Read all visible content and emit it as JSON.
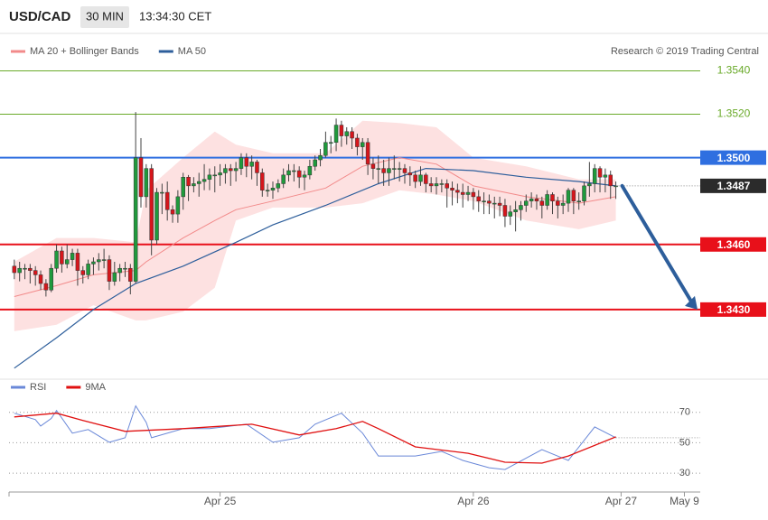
{
  "header": {
    "symbol": "USD/CAD",
    "interval": "30 MIN",
    "time": "13:34:30 CET"
  },
  "source": "Research © 2019 Trading Central",
  "chart_data": [
    {
      "type": "candlestick",
      "open": [
        1.345,
        1.3447,
        1.3449,
        1.3449,
        1.3448,
        1.3446,
        1.3442,
        1.3439,
        1.3449,
        1.3457,
        1.3451,
        1.3453,
        1.3456,
        1.3448,
        1.3446,
        1.3451,
        1.3452,
        1.3453,
        1.3453,
        1.3443,
        1.3447,
        1.3449,
        1.3449,
        1.3443,
        1.35,
        1.3482,
        1.3495,
        1.3462,
        1.3484,
        1.3484,
        1.3476,
        1.3474,
        1.3482,
        1.3491,
        1.3487,
        1.3488,
        1.3489,
        1.349,
        1.3492,
        1.3492,
        1.3493,
        1.3495,
        1.3494,
        1.3495,
        1.35,
        1.3496,
        1.3498,
        1.3493,
        1.3485,
        1.3485,
        1.3486,
        1.3488,
        1.3492,
        1.3494,
        1.3494,
        1.3491,
        1.3492,
        1.3496,
        1.3499,
        1.3501,
        1.3507,
        1.3507,
        1.3515,
        1.351,
        1.3512,
        1.3509,
        1.3505,
        1.3507,
        1.3497,
        1.3495,
        1.3495,
        1.3493,
        1.3495,
        1.3495,
        1.3495,
        1.3493,
        1.3492,
        1.3489,
        1.3492,
        1.3488,
        1.3487,
        1.3488,
        1.3488,
        1.3486,
        1.3485,
        1.3484,
        1.3483,
        1.3484,
        1.3482,
        1.348,
        1.348,
        1.3479,
        1.3479,
        1.3478,
        1.3473,
        1.3475,
        1.3476,
        1.3478,
        1.348,
        1.3481,
        1.348,
        1.3478,
        1.3483,
        1.348,
        1.3478,
        1.3479,
        1.3485,
        1.348,
        1.348,
        1.3487,
        1.3488,
        1.3495,
        1.3491,
        1.3492,
        1.3487
      ],
      "high": [
        1.3453,
        1.3452,
        1.3451,
        1.3451,
        1.345,
        1.3448,
        1.3444,
        1.3451,
        1.346,
        1.3459,
        1.346,
        1.3458,
        1.3458,
        1.345,
        1.3453,
        1.3454,
        1.3456,
        1.3458,
        1.3455,
        1.3452,
        1.3451,
        1.3452,
        1.3451,
        1.3521,
        1.3509,
        1.3497,
        1.3497,
        1.3486,
        1.3488,
        1.3489,
        1.3478,
        1.3485,
        1.3493,
        1.3492,
        1.3491,
        1.3493,
        1.3497,
        1.3495,
        1.3496,
        1.3497,
        1.3497,
        1.3497,
        1.3498,
        1.3502,
        1.3502,
        1.3501,
        1.3499,
        1.3495,
        1.3488,
        1.3489,
        1.349,
        1.3495,
        1.3497,
        1.3497,
        1.3496,
        1.3494,
        1.3499,
        1.3501,
        1.3504,
        1.3512,
        1.351,
        1.3518,
        1.3517,
        1.3514,
        1.3514,
        1.3511,
        1.3509,
        1.3509,
        1.35,
        1.3501,
        1.3499,
        1.35,
        1.3501,
        1.3498,
        1.3497,
        1.3496,
        1.3494,
        1.3496,
        1.3493,
        1.3491,
        1.3491,
        1.349,
        1.349,
        1.3489,
        1.3488,
        1.3488,
        1.3487,
        1.3486,
        1.3485,
        1.3484,
        1.3483,
        1.3482,
        1.3482,
        1.3481,
        1.3478,
        1.348,
        1.348,
        1.3483,
        1.3484,
        1.3483,
        1.3482,
        1.3485,
        1.3484,
        1.3482,
        1.3483,
        1.3486,
        1.3486,
        1.3484,
        1.3489,
        1.3498,
        1.3497,
        1.3496,
        1.3495,
        1.3494,
        1.3489
      ],
      "low": [
        1.3444,
        1.3443,
        1.3444,
        1.3442,
        1.3441,
        1.3439,
        1.3436,
        1.3438,
        1.3447,
        1.3447,
        1.3449,
        1.345,
        1.3441,
        1.3442,
        1.3444,
        1.3446,
        1.3448,
        1.3449,
        1.3439,
        1.3441,
        1.3443,
        1.3445,
        1.3437,
        1.3442,
        1.3477,
        1.3477,
        1.3455,
        1.346,
        1.3474,
        1.3471,
        1.347,
        1.347,
        1.3476,
        1.348,
        1.3484,
        1.3482,
        1.3485,
        1.3485,
        1.3484,
        1.3487,
        1.3488,
        1.3487,
        1.3489,
        1.3492,
        1.3491,
        1.349,
        1.3487,
        1.3482,
        1.3482,
        1.3481,
        1.3484,
        1.3486,
        1.3489,
        1.3489,
        1.3486,
        1.3485,
        1.349,
        1.3494,
        1.3496,
        1.35,
        1.3502,
        1.3503,
        1.3505,
        1.3506,
        1.3504,
        1.3501,
        1.3499,
        1.3492,
        1.349,
        1.3488,
        1.3487,
        1.3487,
        1.349,
        1.3489,
        1.3488,
        1.3487,
        1.3486,
        1.3487,
        1.3484,
        1.3484,
        1.3483,
        1.3484,
        1.3477,
        1.3478,
        1.3479,
        1.3477,
        1.348,
        1.3476,
        1.3475,
        1.3474,
        1.3474,
        1.3472,
        1.3473,
        1.3468,
        1.3469,
        1.3466,
        1.3471,
        1.3475,
        1.3477,
        1.3476,
        1.3472,
        1.3476,
        1.3474,
        1.3472,
        1.3474,
        1.3475,
        1.3474,
        1.3476,
        1.3478,
        1.3482,
        1.3484,
        1.3484,
        1.3484,
        1.3481,
        1.3481
      ],
      "close": [
        1.3447,
        1.3449,
        1.3449,
        1.3448,
        1.3446,
        1.3442,
        1.3439,
        1.3449,
        1.3457,
        1.3451,
        1.3453,
        1.3456,
        1.3448,
        1.3446,
        1.3451,
        1.3452,
        1.3453,
        1.3453,
        1.3443,
        1.3447,
        1.3449,
        1.3449,
        1.3443,
        1.35,
        1.3482,
        1.3495,
        1.3462,
        1.3484,
        1.3484,
        1.3476,
        1.3474,
        1.3482,
        1.3491,
        1.3487,
        1.3488,
        1.3489,
        1.349,
        1.3492,
        1.3492,
        1.3493,
        1.3495,
        1.3494,
        1.3495,
        1.35,
        1.3496,
        1.3498,
        1.3493,
        1.3485,
        1.3485,
        1.3486,
        1.3488,
        1.3492,
        1.3494,
        1.3494,
        1.3491,
        1.3492,
        1.3496,
        1.3499,
        1.3501,
        1.3507,
        1.3507,
        1.3515,
        1.351,
        1.3512,
        1.3509,
        1.3505,
        1.3507,
        1.3497,
        1.3495,
        1.3495,
        1.3493,
        1.3495,
        1.3495,
        1.3495,
        1.3493,
        1.3492,
        1.3489,
        1.3492,
        1.3488,
        1.3487,
        1.3488,
        1.3488,
        1.3486,
        1.3485,
        1.3484,
        1.3483,
        1.3484,
        1.3482,
        1.348,
        1.348,
        1.3479,
        1.3479,
        1.3478,
        1.3473,
        1.3475,
        1.3476,
        1.3478,
        1.348,
        1.3481,
        1.348,
        1.3478,
        1.3483,
        1.348,
        1.3478,
        1.3479,
        1.3485,
        1.348,
        1.348,
        1.3487,
        1.3488,
        1.3495,
        1.3491,
        1.3492,
        1.3487,
        1.3487
      ],
      "up_color": "#1f9a3c",
      "down_color": "#d6161c",
      "wick_color": "#444444",
      "series": [
        {
          "name": "MA 20 + Bollinger Bands",
          "color": "#f28a8a",
          "band_color": "#fde1e1",
          "x": [
            0,
            8,
            15,
            23,
            25,
            32,
            38,
            42,
            49,
            59,
            66,
            73,
            80,
            87,
            97,
            107,
            114
          ],
          "values": [
            1.3436,
            1.3441,
            1.3446,
            1.3448,
            1.3452,
            1.3463,
            1.3471,
            1.3476,
            1.348,
            1.3486,
            1.3496,
            1.35,
            1.3497,
            1.3487,
            1.3482,
            1.3479,
            1.3482
          ],
          "upper": [
            1.3452,
            1.3463,
            1.3463,
            1.3461,
            1.3485,
            1.35,
            1.3512,
            1.3506,
            1.3502,
            1.3502,
            1.3517,
            1.3516,
            1.3514,
            1.35,
            1.3496,
            1.349,
            1.349
          ],
          "lower": [
            1.342,
            1.3423,
            1.3432,
            1.3425,
            1.3425,
            1.3429,
            1.344,
            1.3471,
            1.3477,
            1.3477,
            1.3479,
            1.3485,
            1.3483,
            1.348,
            1.3471,
            1.3467,
            1.3471
          ]
        },
        {
          "name": "MA 50",
          "color": "#2d5e9b",
          "x": [
            0,
            8,
            15,
            23,
            32,
            42,
            49,
            59,
            69,
            78,
            87,
            97,
            107,
            114
          ],
          "values": [
            1.3403,
            1.3417,
            1.343,
            1.3442,
            1.345,
            1.3461,
            1.3469,
            1.3478,
            1.3488,
            1.3495,
            1.3494,
            1.3491,
            1.3489,
            1.3487
          ]
        }
      ],
      "xlim": [
        -1,
        130
      ],
      "ylim": [
        1.34,
        1.3556
      ],
      "yticks": [
        {
          "value": 1.343,
          "label": "1.3430"
        },
        {
          "value": 1.346,
          "label": "1.3460"
        },
        {
          "value": 1.35,
          "label": "1.3500"
        },
        {
          "value": 1.352,
          "label": "1.3520"
        },
        {
          "value": 1.354,
          "label": "1.3540"
        }
      ],
      "ytick_colors": [
        "#e8101a",
        "#e8101a",
        "#2f6fe0",
        "#6aaa2a",
        "#6aaa2a"
      ],
      "ytick_boxed": [
        true,
        true,
        true,
        false,
        false
      ],
      "last": 1.3487,
      "last_color": "#2b2b2b"
    },
    {
      "type": "line",
      "series": [
        {
          "name": "RSI",
          "color": "#6a88d8",
          "x": [
            0,
            4,
            5,
            7,
            8,
            11,
            14,
            18,
            21,
            23,
            25,
            26,
            32,
            37,
            44,
            49,
            54,
            57,
            62,
            66,
            69,
            76,
            81,
            85,
            90,
            93,
            100,
            105,
            110,
            114
          ],
          "values": [
            69.4,
            65.2,
            61,
            66,
            71.2,
            56.3,
            58.7,
            50.3,
            53.3,
            74.2,
            63.4,
            53.3,
            59.3,
            59.3,
            62.2,
            50.3,
            53.3,
            62.2,
            69.4,
            56.3,
            41.3,
            41.3,
            44.3,
            38.4,
            33.6,
            32.4,
            45.5,
            38.4,
            60.4,
            53.3
          ]
        },
        {
          "name": "9MA",
          "color": "#e01010",
          "x": [
            0,
            8,
            13,
            21,
            32,
            45,
            54,
            61,
            66,
            69,
            76,
            86,
            93,
            100,
            105,
            114
          ],
          "values": [
            67,
            69.4,
            64.6,
            57.5,
            59.3,
            62.2,
            55.1,
            59.3,
            64,
            59.3,
            47.3,
            43.1,
            37.2,
            36.6,
            41.3,
            53.9
          ]
        }
      ],
      "xlim": [
        -1,
        130
      ],
      "ylim": [
        20,
        90
      ],
      "yticks": [
        30,
        50,
        70
      ],
      "grid": true,
      "xticks": [
        {
          "value": 39,
          "label": "Apr 25"
        },
        {
          "value": 87,
          "label": "Apr 26"
        },
        {
          "value": 115,
          "label": "Apr 27"
        },
        {
          "value": 127,
          "label": "May 9"
        }
      ]
    }
  ]
}
